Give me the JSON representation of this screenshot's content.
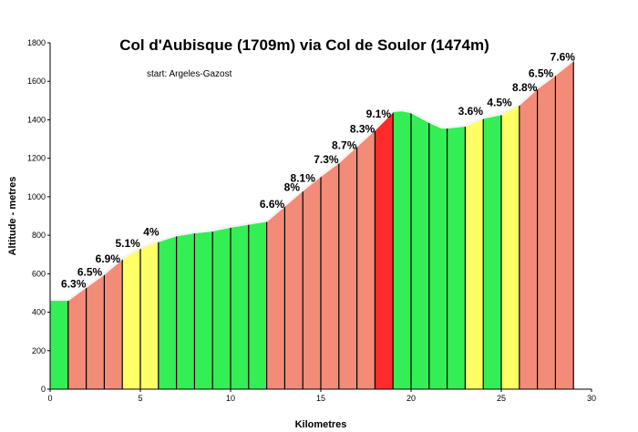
{
  "chart_data": {
    "type": "area",
    "title": "Col d'Aubisque (1709m) via Col de Soulor (1474m)",
    "subtitle": "start: Argeles-Gazost",
    "xlabel": "Kilometres",
    "ylabel": "Altitude - metres",
    "xlim": [
      0,
      30
    ],
    "ylim": [
      0,
      1800
    ],
    "x_ticks": [
      0,
      5,
      10,
      15,
      20,
      25,
      30
    ],
    "y_ticks": [
      0,
      200,
      400,
      600,
      800,
      1000,
      1200,
      1400,
      1600,
      1800
    ],
    "colors": {
      "red": "#ff2a2a",
      "salmon": "#f28b78",
      "yellow": "#ffff66",
      "green": "#33ee55"
    },
    "profile": {
      "x": [
        0,
        1,
        2,
        3,
        4,
        5,
        6,
        7,
        8,
        9,
        10,
        11,
        12,
        13,
        14,
        15,
        16,
        17,
        18,
        19,
        19.5,
        20,
        21,
        21.7,
        22,
        23,
        24,
        25,
        26,
        27,
        28,
        29
      ],
      "y": [
        465,
        465,
        533,
        600,
        680,
        735,
        770,
        800,
        815,
        825,
        845,
        860,
        875,
        955,
        1035,
        1110,
        1180,
        1265,
        1350,
        1445,
        1450,
        1440,
        1390,
        1360,
        1360,
        1370,
        1410,
        1430,
        1480,
        1565,
        1635,
        1710
      ]
    },
    "segments": [
      {
        "from": 0,
        "to": 1,
        "color": "green"
      },
      {
        "from": 1,
        "to": 2,
        "color": "salmon"
      },
      {
        "from": 2,
        "to": 3,
        "color": "salmon"
      },
      {
        "from": 3,
        "to": 4,
        "color": "salmon"
      },
      {
        "from": 4,
        "to": 5,
        "color": "yellow"
      },
      {
        "from": 5,
        "to": 6,
        "color": "yellow"
      },
      {
        "from": 6,
        "to": 7,
        "color": "green"
      },
      {
        "from": 7,
        "to": 8,
        "color": "green"
      },
      {
        "from": 8,
        "to": 9,
        "color": "green"
      },
      {
        "from": 9,
        "to": 10,
        "color": "green"
      },
      {
        "from": 10,
        "to": 11,
        "color": "green"
      },
      {
        "from": 11,
        "to": 12,
        "color": "green"
      },
      {
        "from": 12,
        "to": 13,
        "color": "salmon"
      },
      {
        "from": 13,
        "to": 14,
        "color": "salmon"
      },
      {
        "from": 14,
        "to": 15,
        "color": "salmon"
      },
      {
        "from": 15,
        "to": 16,
        "color": "salmon"
      },
      {
        "from": 16,
        "to": 17,
        "color": "salmon"
      },
      {
        "from": 17,
        "to": 18,
        "color": "salmon"
      },
      {
        "from": 18,
        "to": 19,
        "color": "red"
      },
      {
        "from": 19,
        "to": 20,
        "color": "green"
      },
      {
        "from": 20,
        "to": 21,
        "color": "green"
      },
      {
        "from": 21,
        "to": 22,
        "color": "green"
      },
      {
        "from": 22,
        "to": 23,
        "color": "green"
      },
      {
        "from": 23,
        "to": 24,
        "color": "yellow"
      },
      {
        "from": 24,
        "to": 25,
        "color": "green"
      },
      {
        "from": 25,
        "to": 26,
        "color": "yellow"
      },
      {
        "from": 26,
        "to": 27,
        "color": "salmon"
      },
      {
        "from": 27,
        "to": 28,
        "color": "salmon"
      },
      {
        "from": 28,
        "to": 29,
        "color": "salmon"
      }
    ],
    "grade_labels": [
      {
        "text": "6.3%",
        "km": 1.3
      },
      {
        "text": "6.5%",
        "km": 2.2
      },
      {
        "text": "6.9%",
        "km": 3.2
      },
      {
        "text": "5.1%",
        "km": 4.3
      },
      {
        "text": "4%",
        "km": 5.6
      },
      {
        "text": "6.6%",
        "km": 12.3
      },
      {
        "text": "8%",
        "km": 13.4
      },
      {
        "text": "8.1%",
        "km": 14.0
      },
      {
        "text": "7.3%",
        "km": 15.3
      },
      {
        "text": "8.7%",
        "km": 16.3
      },
      {
        "text": "8.3%",
        "km": 17.3
      },
      {
        "text": "9.1%",
        "km": 18.2
      },
      {
        "text": "3.6%",
        "km": 23.3
      },
      {
        "text": "4.5%",
        "km": 24.9
      },
      {
        "text": "8.8%",
        "km": 26.3
      },
      {
        "text": "6.5%",
        "km": 27.2
      },
      {
        "text": "7.6%",
        "km": 28.4
      }
    ]
  }
}
